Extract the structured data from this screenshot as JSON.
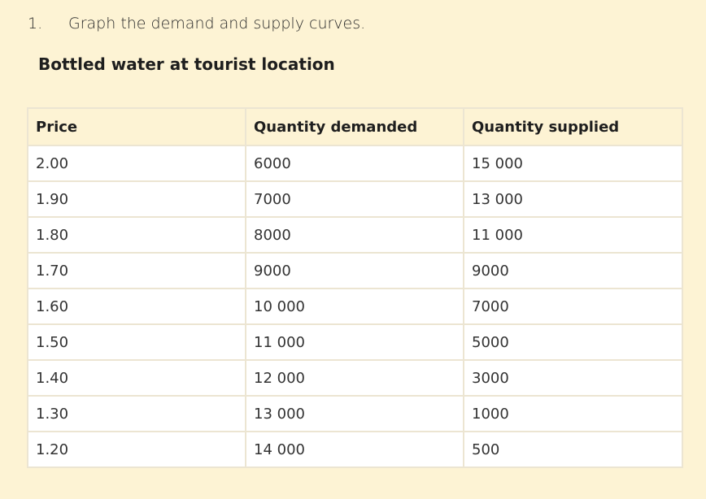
{
  "question": {
    "number": "1.",
    "text": "Graph the demand and supply curves."
  },
  "subtitle": "Bottled water at tourist location",
  "table": {
    "headers": [
      "Price",
      "Quantity demanded",
      "Quantity supplied"
    ],
    "rows": [
      [
        "2.00",
        "6000",
        "15 000"
      ],
      [
        "1.90",
        "7000",
        "13 000"
      ],
      [
        "1.80",
        "8000",
        "11 000"
      ],
      [
        "1.70",
        "9000",
        "9000"
      ],
      [
        "1.60",
        "10 000",
        "7000"
      ],
      [
        "1.50",
        "11 000",
        "5000"
      ],
      [
        "1.40",
        "12 000",
        "3000"
      ],
      [
        "1.30",
        "13 000",
        "1000"
      ],
      [
        "1.20",
        "14 000",
        "500"
      ]
    ]
  },
  "colors": {
    "background": "#fdf3d4",
    "cell": "#ffffff",
    "border": "#ece5d2"
  }
}
